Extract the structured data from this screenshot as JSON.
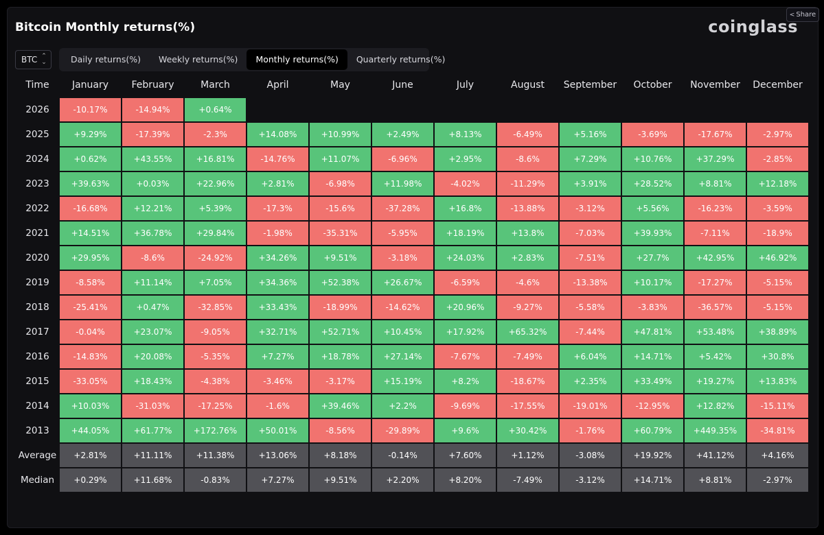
{
  "header": {
    "title": "Bitcoin Monthly returns(%)",
    "logo": "coinglass",
    "share_label": "Share"
  },
  "asset_select": {
    "value": "BTC",
    "icon": "updown-chevron-icon"
  },
  "tabs": [
    {
      "label": "Daily returns(%)",
      "active": false
    },
    {
      "label": "Weekly returns(%)",
      "active": false
    },
    {
      "label": "Monthly returns(%)",
      "active": true
    },
    {
      "label": "Quarterly returns(%)",
      "active": false
    }
  ],
  "colors": {
    "positive": "#58c47a",
    "negative": "#f1736f",
    "summary": "#515156",
    "background": "#101013"
  },
  "table": {
    "columns": [
      "Time",
      "January",
      "February",
      "March",
      "April",
      "May",
      "June",
      "July",
      "August",
      "September",
      "October",
      "November",
      "December"
    ],
    "rows": [
      {
        "year": "2026",
        "values": [
          "-10.17%",
          "-14.94%",
          "+0.64%",
          "",
          "",
          "",
          "",
          "",
          "",
          "",
          "",
          ""
        ]
      },
      {
        "year": "2025",
        "values": [
          "+9.29%",
          "-17.39%",
          "-2.3%",
          "+14.08%",
          "+10.99%",
          "+2.49%",
          "+8.13%",
          "-6.49%",
          "+5.16%",
          "-3.69%",
          "-17.67%",
          "-2.97%"
        ]
      },
      {
        "year": "2024",
        "values": [
          "+0.62%",
          "+43.55%",
          "+16.81%",
          "-14.76%",
          "+11.07%",
          "-6.96%",
          "+2.95%",
          "-8.6%",
          "+7.29%",
          "+10.76%",
          "+37.29%",
          "-2.85%"
        ]
      },
      {
        "year": "2023",
        "values": [
          "+39.63%",
          "+0.03%",
          "+22.96%",
          "+2.81%",
          "-6.98%",
          "+11.98%",
          "-4.02%",
          "-11.29%",
          "+3.91%",
          "+28.52%",
          "+8.81%",
          "+12.18%"
        ]
      },
      {
        "year": "2022",
        "values": [
          "-16.68%",
          "+12.21%",
          "+5.39%",
          "-17.3%",
          "-15.6%",
          "-37.28%",
          "+16.8%",
          "-13.88%",
          "-3.12%",
          "+5.56%",
          "-16.23%",
          "-3.59%"
        ]
      },
      {
        "year": "2021",
        "values": [
          "+14.51%",
          "+36.78%",
          "+29.84%",
          "-1.98%",
          "-35.31%",
          "-5.95%",
          "+18.19%",
          "+13.8%",
          "-7.03%",
          "+39.93%",
          "-7.11%",
          "-18.9%"
        ]
      },
      {
        "year": "2020",
        "values": [
          "+29.95%",
          "-8.6%",
          "-24.92%",
          "+34.26%",
          "+9.51%",
          "-3.18%",
          "+24.03%",
          "+2.83%",
          "-7.51%",
          "+27.7%",
          "+42.95%",
          "+46.92%"
        ]
      },
      {
        "year": "2019",
        "values": [
          "-8.58%",
          "+11.14%",
          "+7.05%",
          "+34.36%",
          "+52.38%",
          "+26.67%",
          "-6.59%",
          "-4.6%",
          "-13.38%",
          "+10.17%",
          "-17.27%",
          "-5.15%"
        ]
      },
      {
        "year": "2018",
        "values": [
          "-25.41%",
          "+0.47%",
          "-32.85%",
          "+33.43%",
          "-18.99%",
          "-14.62%",
          "+20.96%",
          "-9.27%",
          "-5.58%",
          "-3.83%",
          "-36.57%",
          "-5.15%"
        ]
      },
      {
        "year": "2017",
        "values": [
          "-0.04%",
          "+23.07%",
          "-9.05%",
          "+32.71%",
          "+52.71%",
          "+10.45%",
          "+17.92%",
          "+65.32%",
          "-7.44%",
          "+47.81%",
          "+53.48%",
          "+38.89%"
        ]
      },
      {
        "year": "2016",
        "values": [
          "-14.83%",
          "+20.08%",
          "-5.35%",
          "+7.27%",
          "+18.78%",
          "+27.14%",
          "-7.67%",
          "-7.49%",
          "+6.04%",
          "+14.71%",
          "+5.42%",
          "+30.8%"
        ]
      },
      {
        "year": "2015",
        "values": [
          "-33.05%",
          "+18.43%",
          "-4.38%",
          "-3.46%",
          "-3.17%",
          "+15.19%",
          "+8.2%",
          "-18.67%",
          "+2.35%",
          "+33.49%",
          "+19.27%",
          "+13.83%"
        ]
      },
      {
        "year": "2014",
        "values": [
          "+10.03%",
          "-31.03%",
          "-17.25%",
          "-1.6%",
          "+39.46%",
          "+2.2%",
          "-9.69%",
          "-17.55%",
          "-19.01%",
          "-12.95%",
          "+12.82%",
          "-15.11%"
        ]
      },
      {
        "year": "2013",
        "values": [
          "+44.05%",
          "+61.77%",
          "+172.76%",
          "+50.01%",
          "-8.56%",
          "-29.89%",
          "+9.6%",
          "+30.42%",
          "-1.76%",
          "+60.79%",
          "+449.35%",
          "-34.81%"
        ]
      }
    ],
    "summary": [
      {
        "label": "Average",
        "values": [
          "+2.81%",
          "+11.11%",
          "+11.38%",
          "+13.06%",
          "+8.18%",
          "-0.14%",
          "+7.60%",
          "+1.12%",
          "-3.08%",
          "+19.92%",
          "+41.12%",
          "+4.16%"
        ]
      },
      {
        "label": "Median",
        "values": [
          "+0.29%",
          "+11.68%",
          "-0.83%",
          "+7.27%",
          "+9.51%",
          "+2.20%",
          "+8.20%",
          "-7.49%",
          "-3.12%",
          "+14.71%",
          "+8.81%",
          "-2.97%"
        ]
      }
    ]
  }
}
